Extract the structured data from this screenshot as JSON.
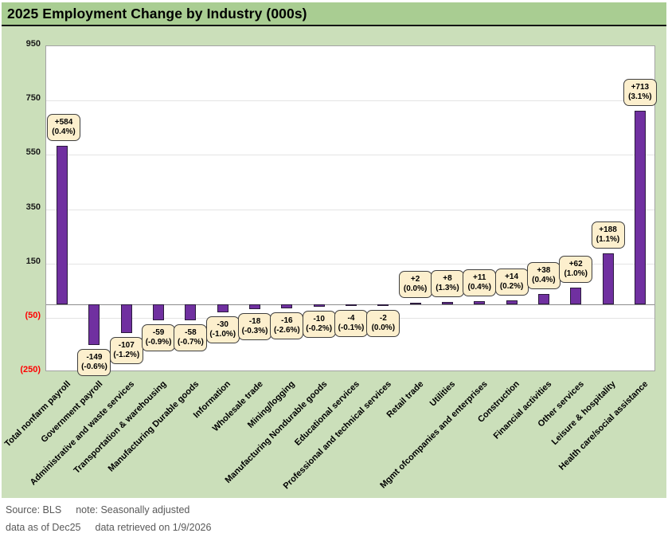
{
  "chart_data": {
    "type": "bar",
    "title": "2025 Employment Change by Industry (000s)",
    "xlabel": "",
    "ylabel": "",
    "ylim": [
      -250,
      950
    ],
    "grid": "horizontal-only",
    "legend": "none",
    "yticks": [
      {
        "value": 950,
        "label": "950"
      },
      {
        "value": 750,
        "label": "750"
      },
      {
        "value": 550,
        "label": "550"
      },
      {
        "value": 350,
        "label": "350"
      },
      {
        "value": 150,
        "label": "150"
      },
      {
        "value": -50,
        "label": "(50)"
      },
      {
        "value": -250,
        "label": "(250)"
      }
    ],
    "bars": [
      {
        "category": "Total nonfarm payroll",
        "value": 584,
        "label": "+584",
        "pct": "(0.4%)"
      },
      {
        "category": "Government payroll",
        "value": -149,
        "label": "-149",
        "pct": "(-0.6%)"
      },
      {
        "category": "Administrative and waste services",
        "value": -107,
        "label": "-107",
        "pct": "(-1.2%)"
      },
      {
        "category": "Transportation & warehousing",
        "value": -59,
        "label": "-59",
        "pct": "(-0.9%)"
      },
      {
        "category": "Manufacturing Durable goods",
        "value": -58,
        "label": "-58",
        "pct": "(-0.7%)"
      },
      {
        "category": "Information",
        "value": -30,
        "label": "-30",
        "pct": "(-1.0%)"
      },
      {
        "category": "Wholesale trade",
        "value": -18,
        "label": "-18",
        "pct": "(-0.3%)"
      },
      {
        "category": "Mining/logging",
        "value": -16,
        "label": "-16",
        "pct": "(-2.6%)"
      },
      {
        "category": "Manufacturing Nondurable goods",
        "value": -10,
        "label": "-10",
        "pct": "(-0.2%)"
      },
      {
        "category": "Educational services",
        "value": -4,
        "label": "-4",
        "pct": "(-0.1%)"
      },
      {
        "category": "Professional and technical services",
        "value": -2,
        "label": "-2",
        "pct": "(0.0%)"
      },
      {
        "category": "Retail trade",
        "value": 2,
        "label": "+2",
        "pct": "(0.0%)"
      },
      {
        "category": "Utilities",
        "value": 8,
        "label": "+8",
        "pct": "(1.3%)"
      },
      {
        "category": "Mgmt ofcompanies and enterprises",
        "value": 11,
        "label": "+11",
        "pct": "(0.4%)"
      },
      {
        "category": "Construction",
        "value": 14,
        "label": "+14",
        "pct": "(0.2%)"
      },
      {
        "category": "Financial activities",
        "value": 38,
        "label": "+38",
        "pct": "(0.4%)"
      },
      {
        "category": "Other services",
        "value": 62,
        "label": "+62",
        "pct": "(1.0%)"
      },
      {
        "category": "Leisure & hospitality",
        "value": 188,
        "label": "+188",
        "pct": "(1.1%)"
      },
      {
        "category": "Health care/social assistance",
        "value": 713,
        "label": "+713",
        "pct": "(3.1%)"
      }
    ]
  },
  "colors": {
    "header_green": "#A9CD92",
    "body_green": "#CBDFBA",
    "bar_fill": "#7030A0",
    "bar_border": "#2B1B3D",
    "callout_fill": "#FCEFCD",
    "callout_border": "#3F3F3F",
    "tick_positive": "#1A1A1A",
    "tick_negative": "#FF0000",
    "gridline": "#E4E4E4",
    "plot_border": "#A3A3A3",
    "zero_line": "#8C8C8C",
    "footer_text": "#595959"
  },
  "footer": {
    "source": "Source: BLS",
    "note": "note: Seasonally adjusted",
    "as_of": "data as of Dec25",
    "retrieved": "data retrieved on 1/9/2026"
  }
}
